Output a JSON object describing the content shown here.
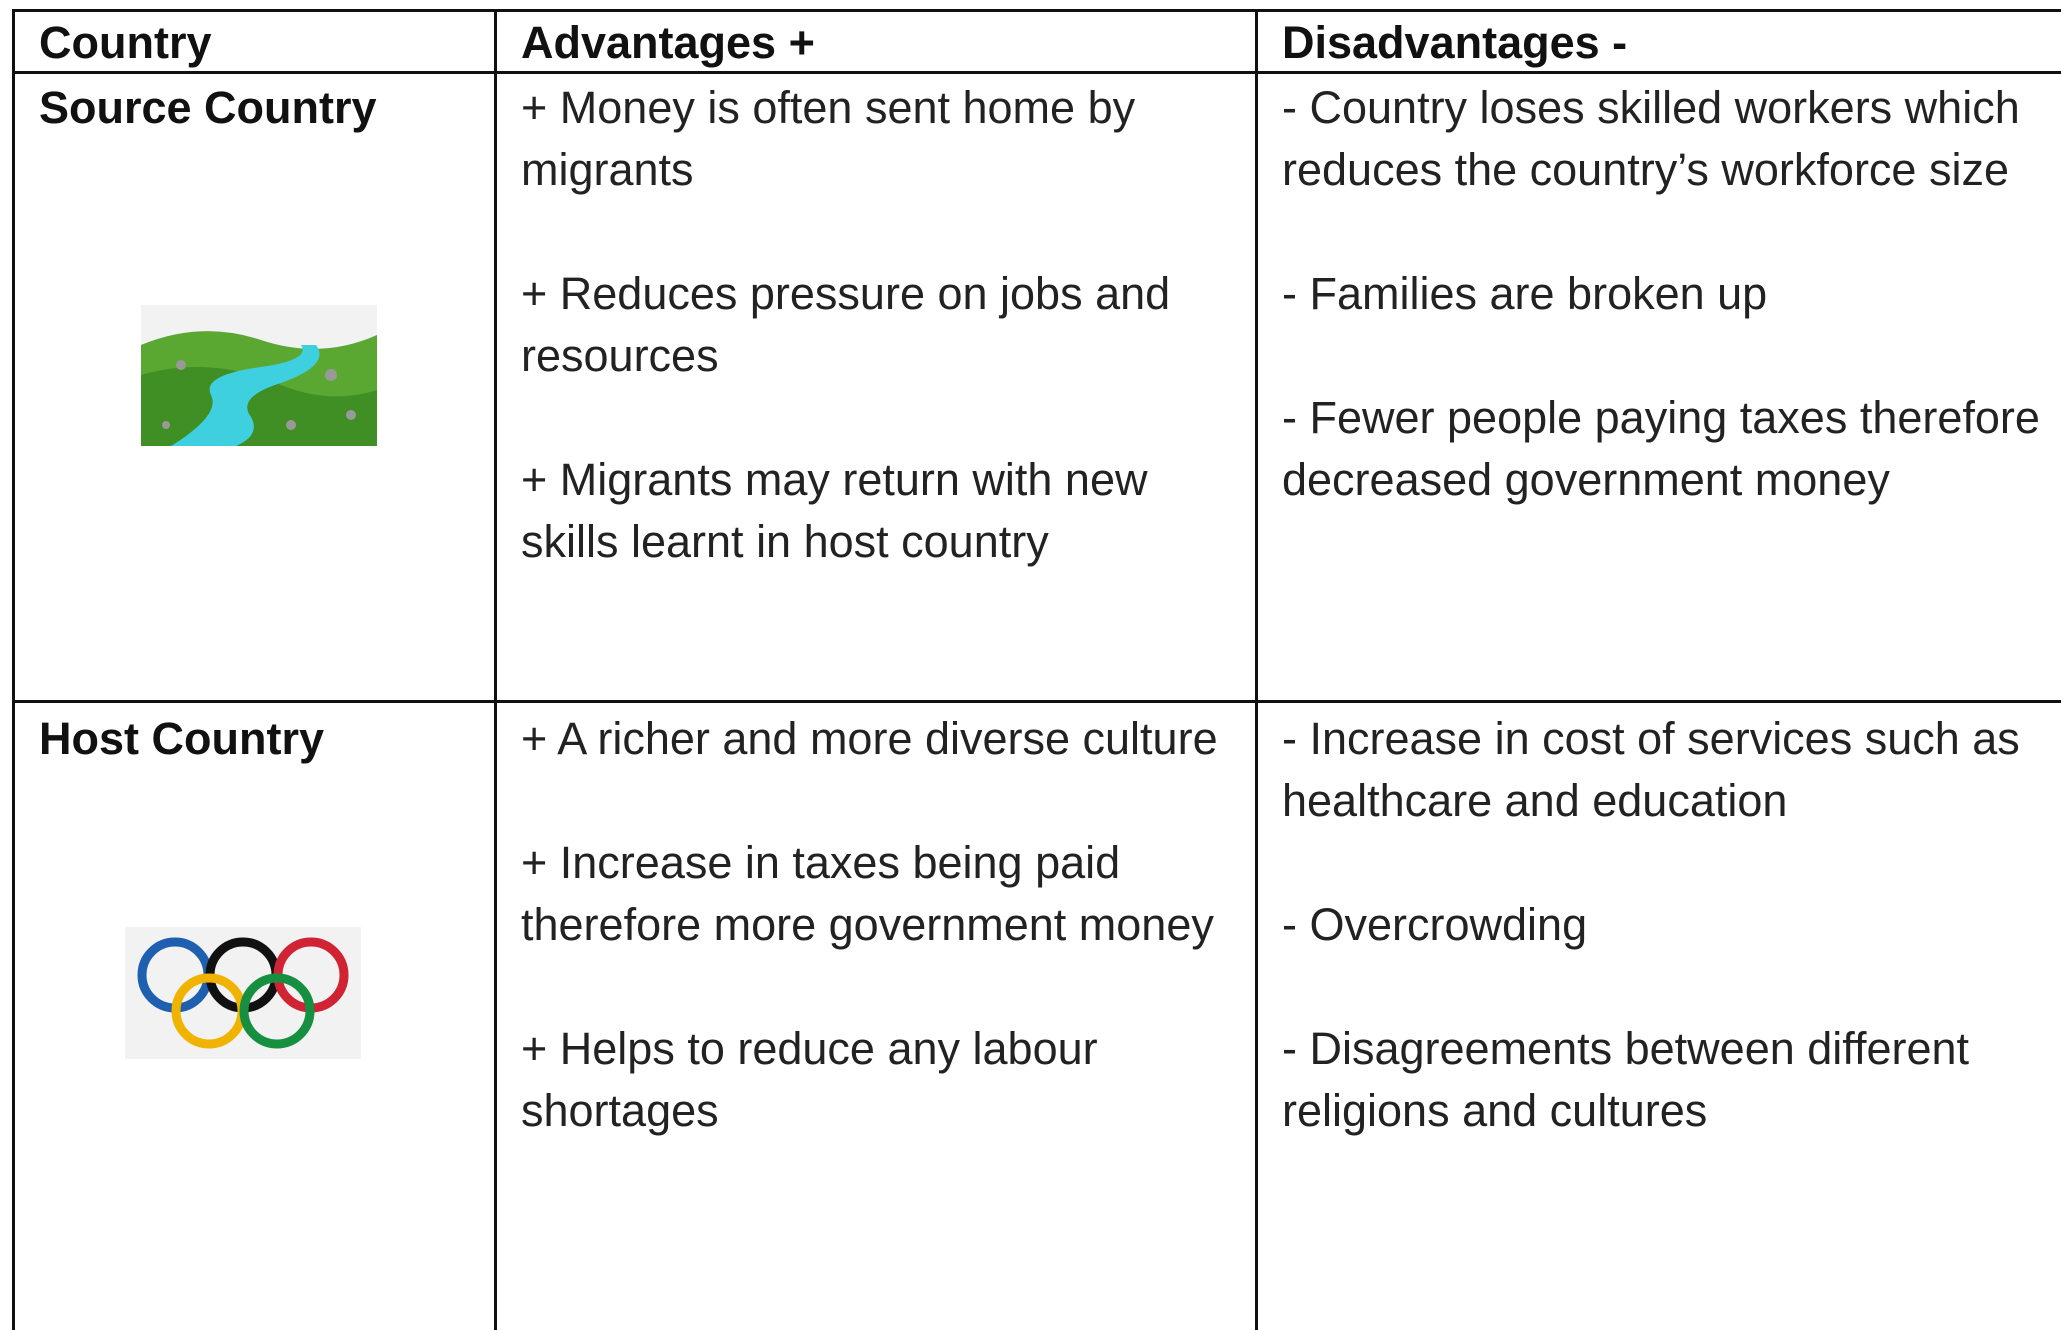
{
  "table": {
    "header": [
      "Country",
      "Advantages +",
      "Disadvantages -"
    ],
    "rows": [
      {
        "country": "Source Country",
        "advantages": [
          "+ Money is often sent home by migrants",
          "+ Reduces pressure on jobs and resources",
          "+ Migrants may return with new skills learnt in host country"
        ],
        "disadvantages": [
          "- Country loses skilled workers which reduces the country’s workforce size",
          "- Families are broken up",
          "- Fewer people paying taxes therefore decreased government money"
        ]
      },
      {
        "country": "Host Country",
        "advantages": [
          "+ A richer and more diverse culture",
          "+ Increase in taxes being paid therefore more government money",
          "+ Helps to reduce any labour shortages"
        ],
        "disadvantages": [
          "- Increase in cost of services such as healthcare and education",
          "- Overcrowding",
          "- Disagreements between different religions and cultures"
        ]
      }
    ]
  }
}
